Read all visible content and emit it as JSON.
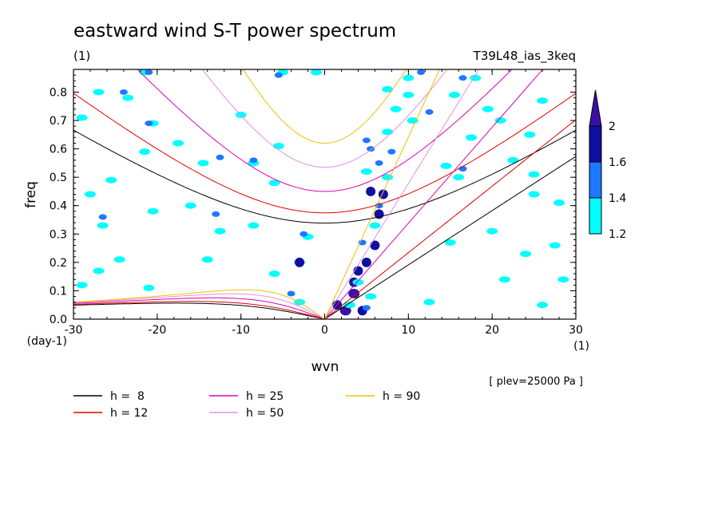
{
  "chart_data": {
    "type": "heatmap",
    "title": "eastward wind S-T power spectrum",
    "subtitle_left": "(1)",
    "subtitle_right": "T39L48_ias_3keq",
    "xlabel": "wvn",
    "ylabel": "freq",
    "x_unit": "(1)",
    "y_unit": "(day-1)",
    "level_note": "[ plev=25000 Pa ]",
    "xlim": [
      -30,
      30
    ],
    "ylim": [
      0,
      0.88
    ],
    "x_ticks": [
      -30,
      -20,
      -10,
      0,
      10,
      20,
      30
    ],
    "y_ticks": [
      0.0,
      0.1,
      0.2,
      0.3,
      0.4,
      0.5,
      0.6,
      0.7,
      0.8
    ],
    "x_tick_labels": [
      "-30",
      "-20",
      "-10",
      "0",
      "10",
      "20",
      "30"
    ],
    "y_tick_labels": [
      "0.0",
      "0.1",
      "0.2",
      "0.3",
      "0.4",
      "0.5",
      "0.6",
      "0.7",
      "0.8"
    ],
    "colorbar": {
      "levels": [
        1.2,
        1.4,
        1.6,
        2
      ],
      "labels": [
        "1.2",
        "1.4",
        "1.6",
        "2"
      ],
      "colors": [
        "#00ffff",
        "#1e78ff",
        "#1010a0",
        "#3a10a8"
      ]
    },
    "dispersion_curves": [
      {
        "name": "h =  8",
        "h": 8,
        "color": "#000000"
      },
      {
        "name": "h = 12",
        "h": 12,
        "color": "#dd0000"
      },
      {
        "name": "h = 25",
        "h": 25,
        "color": "#e000b0"
      },
      {
        "name": "h = 50",
        "h": 50,
        "color": "#e090e0"
      },
      {
        "name": "h = 90",
        "h": 90,
        "color": "#f0c000"
      }
    ],
    "power_patches": [
      {
        "k": 2.5,
        "f": 0.03,
        "level": 4
      },
      {
        "k": 4.5,
        "f": 0.03,
        "level": 3
      },
      {
        "k": 1.5,
        "f": 0.05,
        "level": 3
      },
      {
        "k": 3.5,
        "f": 0.09,
        "level": 4
      },
      {
        "k": 3.5,
        "f": 0.13,
        "level": 3
      },
      {
        "k": 4.0,
        "f": 0.17,
        "level": 3
      },
      {
        "k": 5.0,
        "f": 0.2,
        "level": 3
      },
      {
        "k": 6.0,
        "f": 0.26,
        "level": 3
      },
      {
        "k": 6.5,
        "f": 0.37,
        "level": 3
      },
      {
        "k": 7.0,
        "f": 0.44,
        "level": 3
      },
      {
        "k": 5.5,
        "f": 0.45,
        "level": 3
      },
      {
        "k": 6.5,
        "f": 0.4,
        "level": 2
      },
      {
        "k": 4.5,
        "f": 0.27,
        "level": 2
      },
      {
        "k": 5.5,
        "f": 0.6,
        "level": 2
      },
      {
        "k": 6.5,
        "f": 0.55,
        "level": 2
      },
      {
        "k": 5.0,
        "f": 0.63,
        "level": 2
      },
      {
        "k": 8.0,
        "f": 0.59,
        "level": 2
      },
      {
        "k": 11.5,
        "f": 0.87,
        "level": 2
      },
      {
        "k": 10.5,
        "f": 0.7,
        "level": 1
      },
      {
        "k": 8.5,
        "f": 0.74,
        "level": 1
      },
      {
        "k": 7.5,
        "f": 0.81,
        "level": 1
      },
      {
        "k": 10.0,
        "f": 0.85,
        "level": 1
      },
      {
        "k": 5.0,
        "f": 0.52,
        "level": 1
      },
      {
        "k": 7.5,
        "f": 0.66,
        "level": 1
      },
      {
        "k": 10.0,
        "f": 0.79,
        "level": 1
      },
      {
        "k": 4.0,
        "f": 0.13,
        "level": 1
      },
      {
        "k": 3.0,
        "f": 0.05,
        "level": 1
      },
      {
        "k": 5.5,
        "f": 0.08,
        "level": 1
      },
      {
        "k": 6.0,
        "f": 0.33,
        "level": 1
      },
      {
        "k": 7.5,
        "f": 0.5,
        "level": 1
      },
      {
        "k": 15.5,
        "f": 0.79,
        "level": 1
      },
      {
        "k": 18.0,
        "f": 0.85,
        "level": 1
      },
      {
        "k": 17.5,
        "f": 0.64,
        "level": 1
      },
      {
        "k": 19.5,
        "f": 0.74,
        "level": 1
      },
      {
        "k": 21.0,
        "f": 0.7,
        "level": 1
      },
      {
        "k": 26.0,
        "f": 0.77,
        "level": 1
      },
      {
        "k": 24.5,
        "f": 0.65,
        "level": 1
      },
      {
        "k": 22.5,
        "f": 0.56,
        "level": 1
      },
      {
        "k": 25.0,
        "f": 0.51,
        "level": 1
      },
      {
        "k": 16.0,
        "f": 0.5,
        "level": 1
      },
      {
        "k": 14.5,
        "f": 0.54,
        "level": 1
      },
      {
        "k": 28.0,
        "f": 0.41,
        "level": 1
      },
      {
        "k": 25.0,
        "f": 0.44,
        "level": 1
      },
      {
        "k": 20.0,
        "f": 0.31,
        "level": 1
      },
      {
        "k": 24.0,
        "f": 0.23,
        "level": 1
      },
      {
        "k": 27.5,
        "f": 0.26,
        "level": 1
      },
      {
        "k": 21.5,
        "f": 0.14,
        "level": 1
      },
      {
        "k": 28.5,
        "f": 0.14,
        "level": 1
      },
      {
        "k": 26.0,
        "f": 0.05,
        "level": 1
      },
      {
        "k": 12.5,
        "f": 0.06,
        "level": 1
      },
      {
        "k": 15.0,
        "f": 0.27,
        "level": 1
      },
      {
        "k": -27.0,
        "f": 0.8,
        "level": 1
      },
      {
        "k": -29.0,
        "f": 0.71,
        "level": 1
      },
      {
        "k": -21.5,
        "f": 0.87,
        "level": 1
      },
      {
        "k": -23.5,
        "f": 0.78,
        "level": 1
      },
      {
        "k": -20.5,
        "f": 0.69,
        "level": 1
      },
      {
        "k": -21.5,
        "f": 0.59,
        "level": 1
      },
      {
        "k": -17.5,
        "f": 0.62,
        "level": 1
      },
      {
        "k": -14.5,
        "f": 0.55,
        "level": 1
      },
      {
        "k": -10.0,
        "f": 0.72,
        "level": 1
      },
      {
        "k": -8.5,
        "f": 0.55,
        "level": 1
      },
      {
        "k": -5.5,
        "f": 0.61,
        "level": 1
      },
      {
        "k": -5.0,
        "f": 0.87,
        "level": 1
      },
      {
        "k": -1.0,
        "f": 0.87,
        "level": 1
      },
      {
        "k": -25.5,
        "f": 0.49,
        "level": 1
      },
      {
        "k": -26.5,
        "f": 0.33,
        "level": 1
      },
      {
        "k": -28.0,
        "f": 0.44,
        "level": 1
      },
      {
        "k": -20.5,
        "f": 0.38,
        "level": 1
      },
      {
        "k": -16.0,
        "f": 0.4,
        "level": 1
      },
      {
        "k": -12.5,
        "f": 0.31,
        "level": 1
      },
      {
        "k": -8.5,
        "f": 0.33,
        "level": 1
      },
      {
        "k": -6.0,
        "f": 0.48,
        "level": 1
      },
      {
        "k": -2.0,
        "f": 0.29,
        "level": 1
      },
      {
        "k": -24.5,
        "f": 0.21,
        "level": 1
      },
      {
        "k": -14.0,
        "f": 0.21,
        "level": 1
      },
      {
        "k": -6.0,
        "f": 0.16,
        "level": 1
      },
      {
        "k": -27.0,
        "f": 0.17,
        "level": 1
      },
      {
        "k": -29.0,
        "f": 0.12,
        "level": 1
      },
      {
        "k": -21.0,
        "f": 0.11,
        "level": 1
      },
      {
        "k": -3.0,
        "f": 0.06,
        "level": 1
      },
      {
        "k": -3.0,
        "f": 0.2,
        "level": 1
      },
      {
        "k": -5.5,
        "f": 0.86,
        "level": 2
      },
      {
        "k": -24.0,
        "f": 0.8,
        "level": 2
      },
      {
        "k": -21.0,
        "f": 0.87,
        "level": 2
      },
      {
        "k": -21.0,
        "f": 0.69,
        "level": 2
      },
      {
        "k": -12.5,
        "f": 0.57,
        "level": 2
      },
      {
        "k": -8.5,
        "f": 0.56,
        "level": 2
      },
      {
        "k": -2.5,
        "f": 0.3,
        "level": 2
      },
      {
        "k": -3.0,
        "f": 0.2,
        "level": 3
      },
      {
        "k": -4.0,
        "f": 0.09,
        "level": 2
      },
      {
        "k": -13.0,
        "f": 0.37,
        "level": 2
      },
      {
        "k": -26.5,
        "f": 0.36,
        "level": 2
      },
      {
        "k": 16.5,
        "f": 0.85,
        "level": 2
      },
      {
        "k": 12.5,
        "f": 0.73,
        "level": 2
      },
      {
        "k": 16.5,
        "f": 0.53,
        "level": 2
      },
      {
        "k": 5.0,
        "f": 0.04,
        "level": 2
      }
    ]
  }
}
